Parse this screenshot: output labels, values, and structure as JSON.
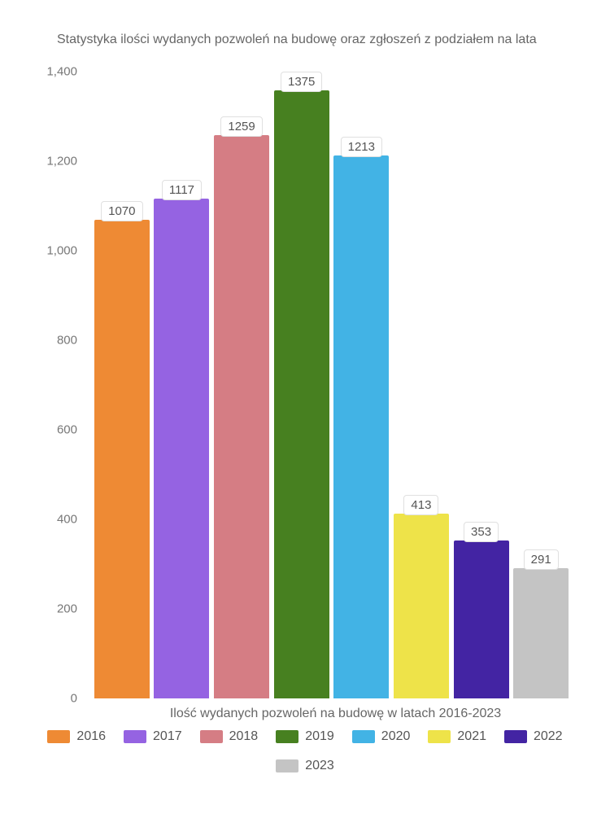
{
  "chart": {
    "type": "bar",
    "title": "Statystyka ilości wydanych pozwoleń na budowę oraz zgłoszeń z podziałem na lata",
    "title_fontsize": 16,
    "title_color": "#666666",
    "background_color": "#ffffff",
    "x_axis_label": "Ilość wydanych pozwoleń na budowę w latach 2016-2023",
    "x_axis_label_fontsize": 16,
    "y_axis": {
      "min": 0,
      "max": 1400,
      "tick_step": 200,
      "ticks": [
        "0",
        "200",
        "400",
        "600",
        "800",
        "1,000",
        "1,200",
        "1,400"
      ],
      "tick_raw": [
        0,
        200,
        400,
        600,
        800,
        1000,
        1200,
        1400
      ],
      "tick_color": "#777777",
      "tick_fontsize": 15
    },
    "label_box": {
      "background": "#ffffff",
      "border_color": "#e0e0e0",
      "text_color": "#555555",
      "fontsize": 15,
      "border_radius": 4
    },
    "bars": [
      {
        "year": "2016",
        "value": 1070,
        "color": "#ee8a34"
      },
      {
        "year": "2017",
        "value": 1117,
        "color": "#9563e2"
      },
      {
        "year": "2018",
        "value": 1259,
        "color": "#d57d84"
      },
      {
        "year": "2019",
        "value": 1375,
        "color": "#478020"
      },
      {
        "year": "2020",
        "value": 1213,
        "color": "#42b3e5"
      },
      {
        "year": "2021",
        "value": 413,
        "color": "#eee349"
      },
      {
        "year": "2022",
        "value": 353,
        "color": "#4324a3"
      },
      {
        "year": "2023",
        "value": 291,
        "color": "#c4c4c4"
      }
    ],
    "bar_width": 0.88,
    "legend": {
      "fontsize": 16,
      "text_color": "#555555",
      "swatch_width": 28,
      "swatch_height": 16
    }
  }
}
